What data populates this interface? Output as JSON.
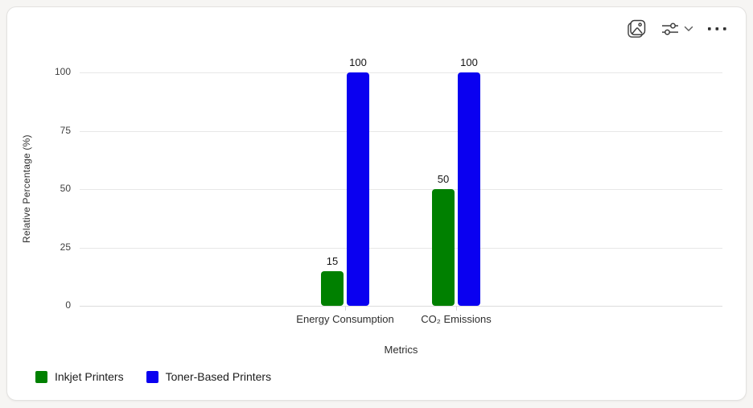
{
  "toolbar": {
    "icons": [
      {
        "name": "image-icon"
      },
      {
        "name": "filter-sliders-icon"
      },
      {
        "name": "chevron-down-icon"
      },
      {
        "name": "more-options-icon"
      }
    ]
  },
  "chart_data": {
    "type": "bar",
    "title": "",
    "categories": [
      "Energy Consumption",
      "CO₂ Emissions"
    ],
    "series": [
      {
        "name": "Inkjet Printers",
        "color": "#008000",
        "values": [
          15,
          50
        ]
      },
      {
        "name": "Toner-Based Printers",
        "color": "#0a00f0",
        "values": [
          100,
          100
        ]
      }
    ],
    "xlabel": "Metrics",
    "ylabel": "Relative Percentage (%)",
    "ylim": [
      0,
      100
    ],
    "yticks": [
      0,
      25,
      50,
      75,
      100
    ],
    "grid": true,
    "data_labels": true,
    "legend_position": "bottom-left"
  }
}
